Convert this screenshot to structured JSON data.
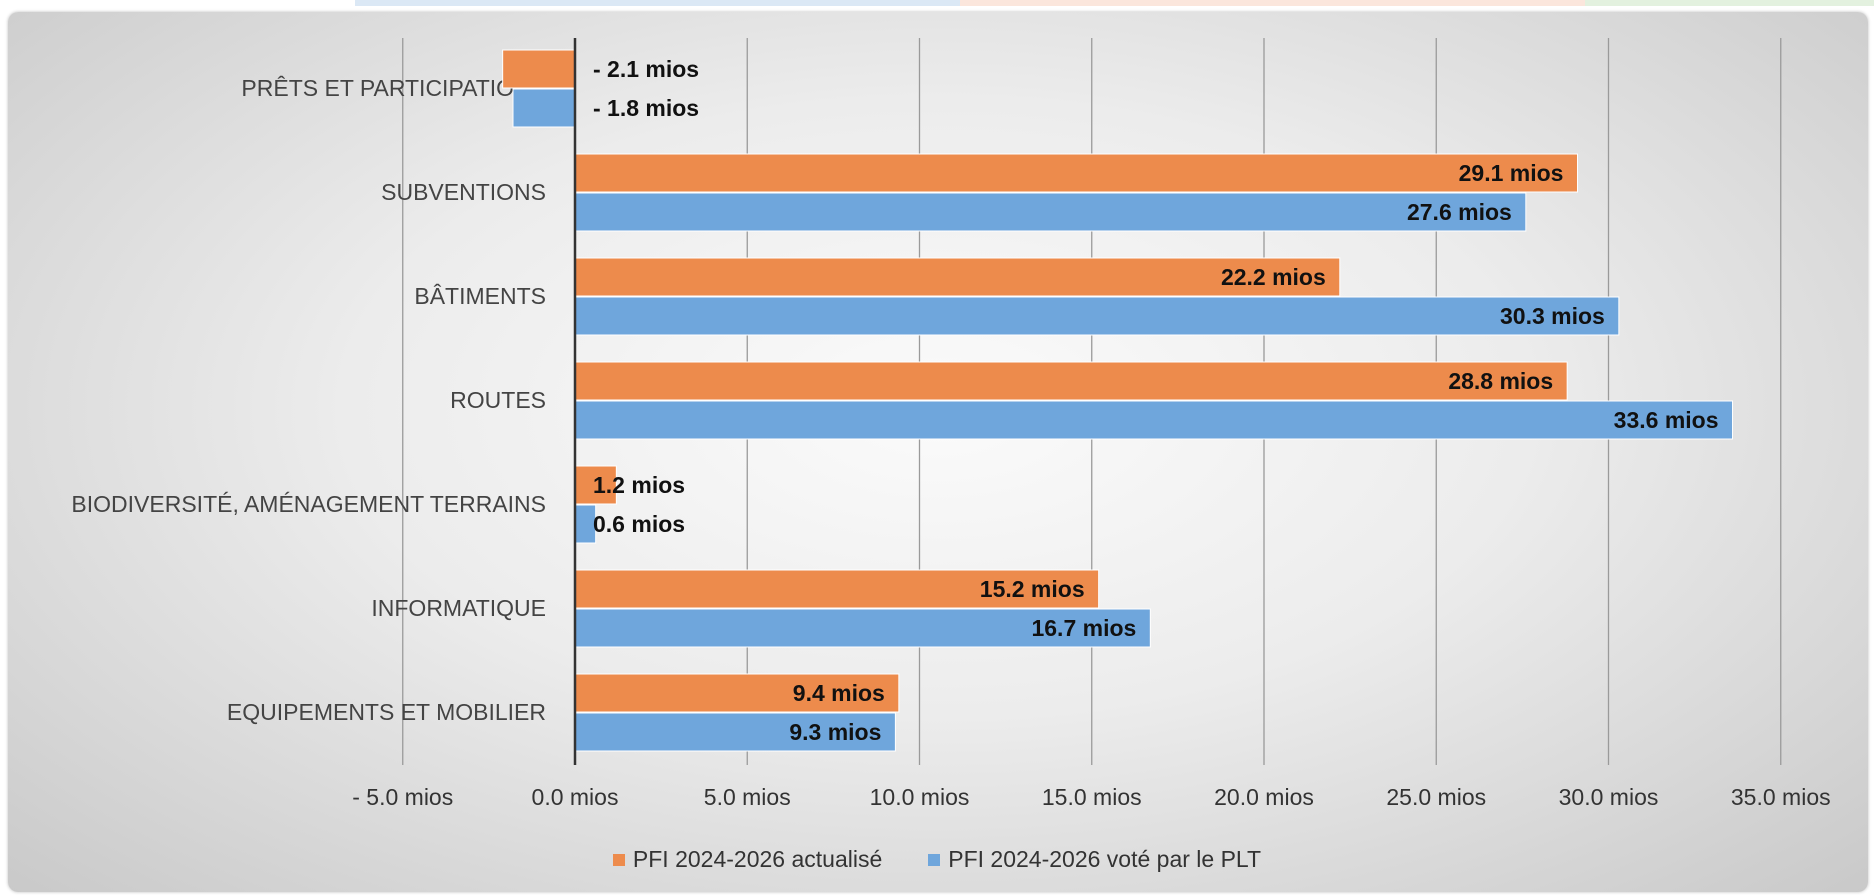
{
  "top_bar": {
    "fragment_text": "",
    "colors": [
      "#ffffff",
      "#dbe8f5",
      "#fbe6dc",
      "#e3f1df"
    ]
  },
  "legend": {
    "items": [
      {
        "label": "PFI 2024-2026 actualisé",
        "color": "#ed8b4c"
      },
      {
        "label": "PFI 2024-2026 voté par le PLT",
        "color": "#6fa6dc"
      }
    ]
  },
  "chart_data": {
    "type": "bar",
    "orientation": "horizontal",
    "categories": [
      "PRÊTS ET PARTICIPATIONS",
      "SUBVENTIONS",
      "BÂTIMENTS",
      "ROUTES",
      "BIODIVERSITÉ, AMÉNAGEMENT TERRAINS",
      "INFORMATIQUE",
      "EQUIPEMENTS ET MOBILIER"
    ],
    "series": [
      {
        "name": "PFI 2024-2026 actualisé",
        "color": "#ed8b4c",
        "values": [
          -2.1,
          29.1,
          22.2,
          28.8,
          1.2,
          15.2,
          9.4
        ],
        "labels": [
          "- 2.1  mios",
          "29.1  mios",
          "22.2  mios",
          "28.8  mios",
          "1.2  mios",
          "15.2  mios",
          "9.4  mios"
        ]
      },
      {
        "name": "PFI 2024-2026 voté par le PLT",
        "color": "#6fa6dc",
        "values": [
          -1.8,
          27.6,
          30.3,
          33.6,
          0.6,
          16.7,
          9.3
        ],
        "labels": [
          "- 1.8  mios",
          "27.6  mios",
          "30.3  mios",
          "33.6  mios",
          "0.6  mios",
          "16.7  mios",
          "9.3  mios"
        ]
      }
    ],
    "xlim": [
      -5,
      35
    ],
    "xticks": [
      -5,
      0,
      5,
      10,
      15,
      20,
      25,
      30,
      35
    ],
    "xtick_labels": [
      "- 5.0  mios",
      "0.0  mios",
      "5.0  mios",
      "10.0  mios",
      "15.0  mios",
      "20.0  mios",
      "25.0  mios",
      "30.0  mios",
      "35.0  mios"
    ],
    "grid": "vertical",
    "legend_position": "bottom"
  }
}
